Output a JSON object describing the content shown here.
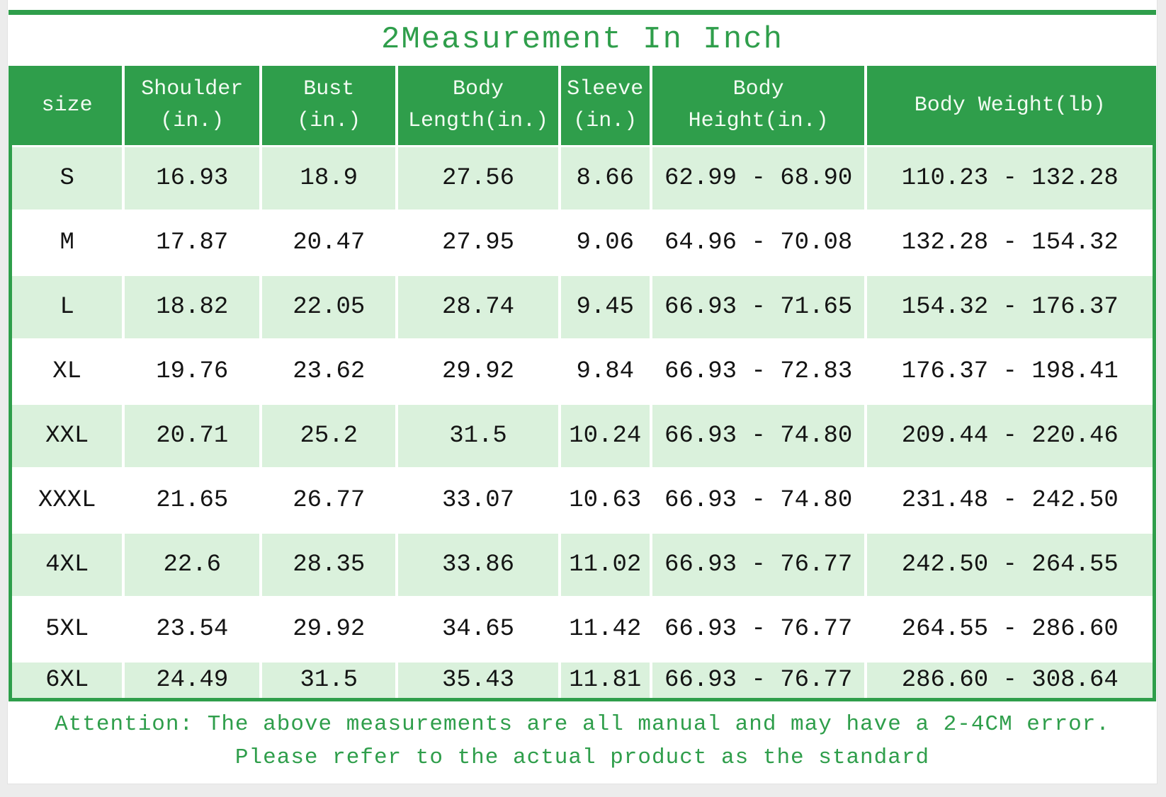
{
  "page": {
    "title": "2Measurement In Inch"
  },
  "colors": {
    "accent_green": "#2f9e4b",
    "row_light_green": "#daf1dc",
    "header_text": "#f2fbf2",
    "cell_text": "#141414"
  },
  "table": {
    "columns": [
      {
        "id": "size",
        "lines": [
          "size"
        ]
      },
      {
        "id": "shoulder",
        "lines": [
          "Shoulder",
          "(in.)"
        ]
      },
      {
        "id": "bust",
        "lines": [
          "Bust",
          "(in.)"
        ]
      },
      {
        "id": "body-length",
        "lines": [
          "Body",
          "Length(in.)"
        ]
      },
      {
        "id": "sleeve",
        "lines": [
          "Sleeve",
          "(in.)"
        ]
      },
      {
        "id": "body-height",
        "lines": [
          "Body",
          "Height(in.)"
        ]
      },
      {
        "id": "body-weight",
        "lines": [
          "Body Weight(lb)"
        ]
      }
    ],
    "rows": [
      [
        "S",
        "16.93",
        "18.9",
        "27.56",
        "8.66",
        "62.99 - 68.90",
        "110.23 - 132.28"
      ],
      [
        "M",
        "17.87",
        "20.47",
        "27.95",
        "9.06",
        "64.96 - 70.08",
        "132.28 - 154.32"
      ],
      [
        "L",
        "18.82",
        "22.05",
        "28.74",
        "9.45",
        "66.93 - 71.65",
        "154.32 - 176.37"
      ],
      [
        "XL",
        "19.76",
        "23.62",
        "29.92",
        "9.84",
        "66.93 - 72.83",
        "176.37 - 198.41"
      ],
      [
        "XXL",
        "20.71",
        "25.2",
        "31.5",
        "10.24",
        "66.93 - 74.80",
        "209.44 - 220.46"
      ],
      [
        "XXXL",
        "21.65",
        "26.77",
        "33.07",
        "10.63",
        "66.93 - 74.80",
        "231.48 - 242.50"
      ],
      [
        "4XL",
        "22.6",
        "28.35",
        "33.86",
        "11.02",
        "66.93 - 76.77",
        "242.50 - 264.55"
      ],
      [
        "5XL",
        "23.54",
        "29.92",
        "34.65",
        "11.42",
        "66.93 - 76.77",
        "264.55 - 286.60"
      ],
      [
        "6XL",
        "24.49",
        "31.5",
        "35.43",
        "11.81",
        "66.93 - 76.77",
        "286.60 - 308.64"
      ]
    ]
  },
  "attention": {
    "line1": "Attention: The above measurements are all manual and may have a 2-4CM error.",
    "line2": "Please refer to the actual product as the standard"
  }
}
